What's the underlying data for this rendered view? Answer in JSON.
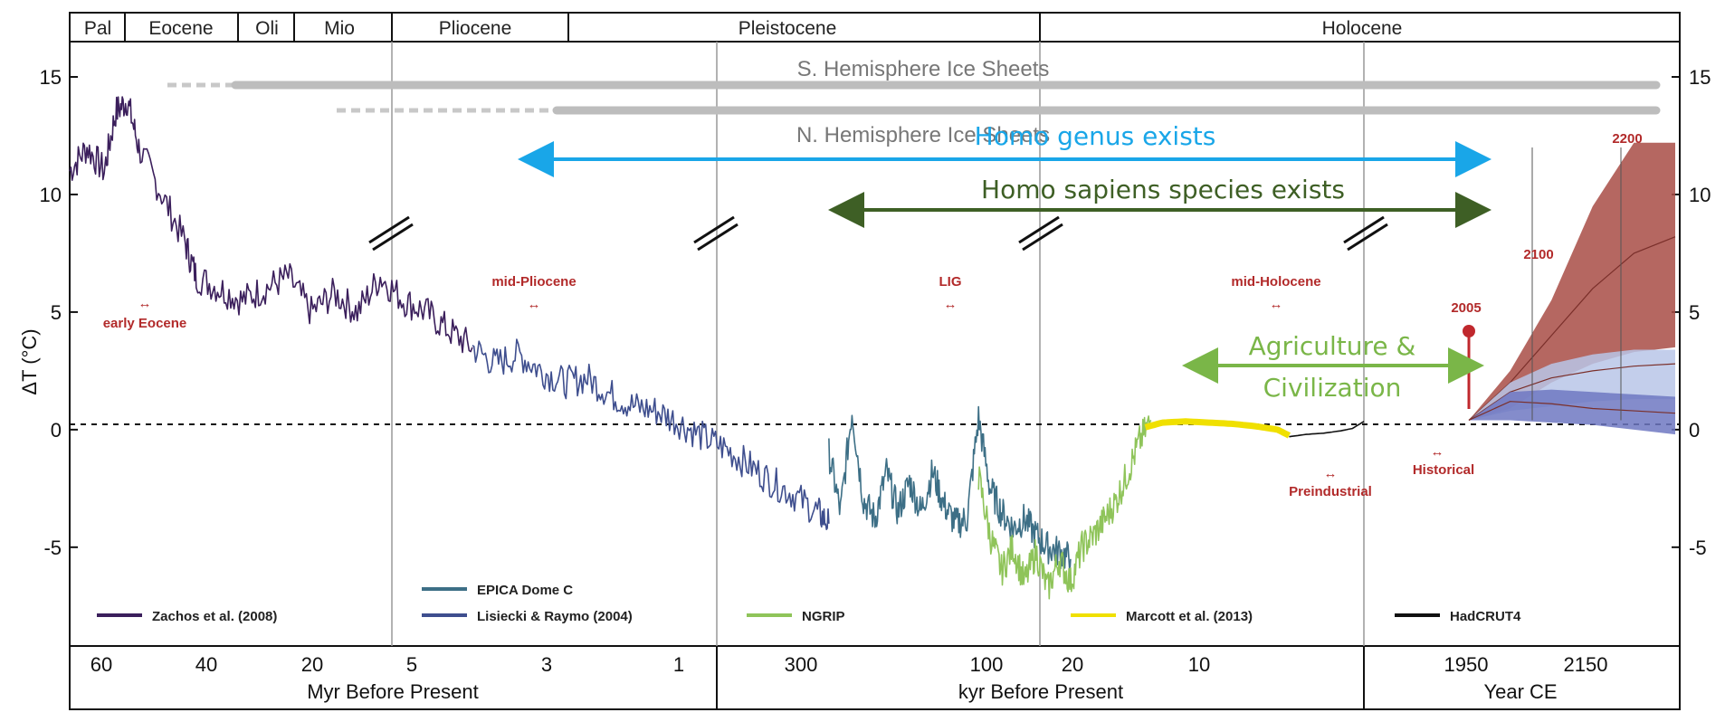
{
  "chart_data": {
    "type": "line",
    "ylabel": "ΔT (°C)",
    "ylim": [
      -9.2,
      16.5
    ],
    "y_ticks": [
      "15",
      "10",
      "5",
      "0",
      "-5"
    ],
    "right_y_ticks": [
      "15",
      "10",
      "5",
      "0",
      "-5"
    ],
    "epochs": [
      "Pal",
      "Eocene",
      "Oli",
      "Mio",
      "Pliocene",
      "Pleistocene",
      "Holocene"
    ],
    "panels": [
      {
        "xlabel": "Myr Before Present",
        "ticks": [
          "60",
          "40",
          "20",
          "5",
          "3",
          "1"
        ]
      },
      {
        "xlabel": "kyr Before Present",
        "ticks": [
          "300",
          "100",
          "20",
          "10"
        ]
      },
      {
        "xlabel": "Year CE",
        "ticks": [
          "1950",
          "2150"
        ]
      }
    ],
    "ice_sheets": [
      "S. Hemisphere Ice Sheets",
      "N. Hemisphere Ice Sheets"
    ],
    "period_labels": [
      "early Eocene",
      "mid-Pliocene",
      "LIG",
      "mid-Holocene",
      "Preindustrial",
      "Historical"
    ],
    "spans": [
      {
        "label": "Homo genus exists",
        "color": "#19a6e8"
      },
      {
        "label": "Homo sapiens species exists",
        "color": "#3e5f25"
      },
      {
        "label": "Agriculture &",
        "label2": "Civilization",
        "color": "#7ab648"
      }
    ],
    "projection_labels": [
      "2100",
      "2200",
      "2005"
    ],
    "series": [
      {
        "name": "Zachos et al. (2008)",
        "color": "#3b1f5c",
        "points": [
          [
            0,
            11
          ],
          [
            1.5,
            12
          ],
          [
            3,
            11
          ],
          [
            4,
            13.5
          ],
          [
            5,
            14
          ],
          [
            6,
            12
          ],
          [
            8,
            10
          ],
          [
            10,
            8
          ],
          [
            11,
            6.5
          ],
          [
            13,
            6
          ],
          [
            15,
            5.5
          ],
          [
            17,
            6
          ],
          [
            19,
            6.5
          ],
          [
            21,
            5
          ],
          [
            23,
            5.8
          ],
          [
            25,
            5
          ],
          [
            27,
            6.5
          ],
          [
            29,
            5.5
          ],
          [
            31,
            5
          ],
          [
            33,
            4.2
          ],
          [
            35,
            3.5
          ]
        ]
      },
      {
        "name": "Lisiecki & Raymo (2004)",
        "color": "#3e4e8e",
        "points": [
          [
            35,
            3.5
          ],
          [
            37,
            2.8
          ],
          [
            39,
            3.2
          ],
          [
            41,
            2.5
          ],
          [
            43,
            2.0
          ],
          [
            45,
            2.2
          ],
          [
            47,
            1.5
          ],
          [
            49,
            1.0
          ],
          [
            51,
            0.8
          ],
          [
            53,
            0.3
          ],
          [
            55,
            -0.3
          ],
          [
            57,
            -0.8
          ],
          [
            59,
            -1.5
          ],
          [
            61,
            -2.2
          ],
          [
            63,
            -2.8
          ],
          [
            65,
            -3.5
          ],
          [
            66,
            -4.0
          ]
        ]
      },
      {
        "name": "EPICA Dome C",
        "color": "#3d6f86",
        "points": [
          [
            66,
            -1.0
          ],
          [
            67,
            -3.5
          ],
          [
            68,
            0.8
          ],
          [
            69,
            -3.0
          ],
          [
            70,
            -3.8
          ],
          [
            71,
            -1.8
          ],
          [
            72,
            -3.5
          ],
          [
            73,
            -2.2
          ],
          [
            74,
            -3.5
          ],
          [
            75,
            -1.8
          ],
          [
            76,
            -3.2
          ],
          [
            77,
            -4.0
          ],
          [
            78,
            -3.8
          ],
          [
            79,
            0.5
          ],
          [
            80,
            -2.5
          ],
          [
            81,
            -3.5
          ],
          [
            82,
            -4.2
          ],
          [
            83,
            -3.8
          ],
          [
            84,
            -4.5
          ],
          [
            85,
            -5.0
          ],
          [
            86,
            -5.2
          ],
          [
            87,
            -5.5
          ]
        ]
      },
      {
        "name": "NGRIP",
        "color": "#8fc45a",
        "points": [
          [
            79,
            -2.0
          ],
          [
            80,
            -4.5
          ],
          [
            81,
            -6.0
          ],
          [
            82,
            -5.0
          ],
          [
            83,
            -6.5
          ],
          [
            84,
            -5.2
          ],
          [
            85,
            -6.8
          ],
          [
            86,
            -5.5
          ],
          [
            87,
            -6.5
          ],
          [
            88,
            -5.0
          ],
          [
            89,
            -4.5
          ],
          [
            90,
            -3.8
          ],
          [
            91,
            -3.0
          ],
          [
            92,
            -1.8
          ],
          [
            93,
            -0.5
          ],
          [
            94,
            0.4
          ]
        ]
      },
      {
        "name": "Marcott et al. (2013)",
        "color": "#f0e000",
        "points": [
          [
            93.5,
            0.1
          ],
          [
            95,
            0.3
          ],
          [
            97,
            0.35
          ],
          [
            99,
            0.3
          ],
          [
            101,
            0.25
          ],
          [
            103,
            0.15
          ],
          [
            105,
            0.0
          ],
          [
            106,
            -0.25
          ]
        ]
      },
      {
        "name": "HadCRUT4",
        "color": "#111111",
        "points": [
          [
            106,
            -0.3
          ],
          [
            107.5,
            -0.2
          ],
          [
            109,
            -0.15
          ],
          [
            110.5,
            -0.05
          ],
          [
            111.5,
            0.05
          ],
          [
            112.5,
            0.35
          ]
        ]
      }
    ],
    "projections": [
      {
        "color": "#a84c45",
        "upper": [
          0.4,
          2.5,
          5.5,
          9.5,
          12.2,
          12.2
        ],
        "lower": [
          0.4,
          0.9,
          2.0,
          2.8,
          3.3,
          3.5
        ],
        "mid": [
          0.4,
          2.0,
          4.0,
          6.0,
          7.5,
          8.2
        ]
      },
      {
        "color": "#b9c5e8",
        "upper": [
          0.4,
          2.0,
          2.8,
          3.2,
          3.4,
          3.4
        ],
        "lower": [
          0.4,
          0.8,
          1.0,
          1.2,
          1.3,
          1.3
        ],
        "mid": [
          0.4,
          1.6,
          2.2,
          2.5,
          2.7,
          2.8
        ]
      },
      {
        "color": "#6f78c2",
        "upper": [
          0.4,
          1.6,
          1.7,
          1.6,
          1.5,
          1.4
        ],
        "lower": [
          0.4,
          0.4,
          0.3,
          0.2,
          0.0,
          -0.2
        ],
        "mid": [
          0.4,
          1.2,
          1.1,
          0.9,
          0.8,
          0.7
        ]
      }
    ],
    "colors": {
      "period_labels": "#b22a2a",
      "axis": "#111111",
      "dashed_zero": "#111111"
    }
  }
}
